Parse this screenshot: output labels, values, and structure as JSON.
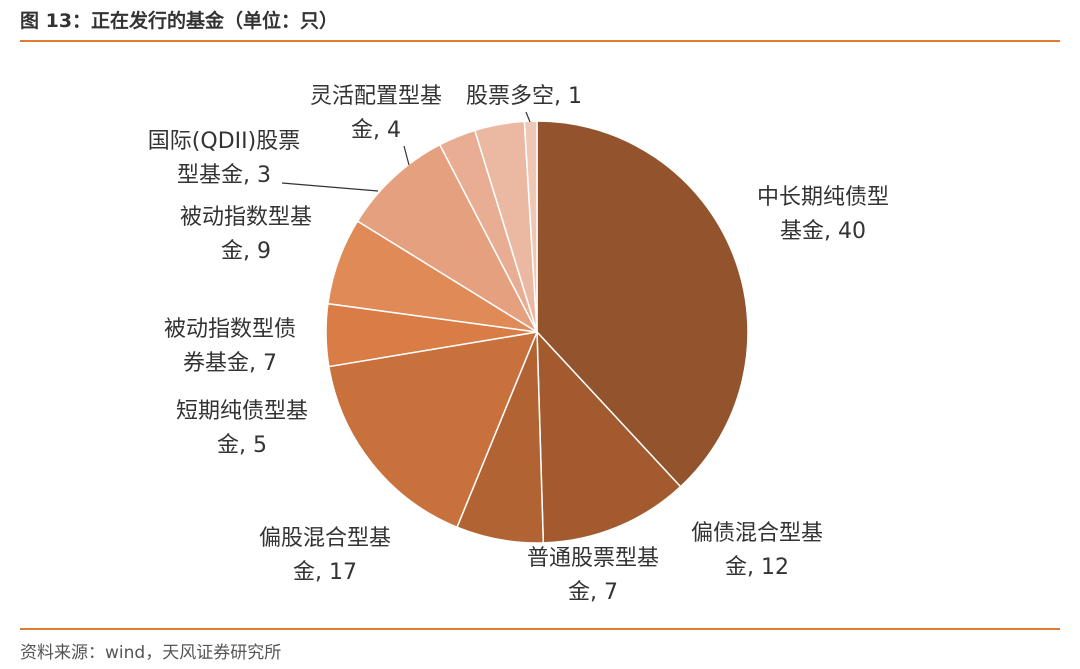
{
  "header": {
    "title": "图 13：正在发行的基金（单位：只）"
  },
  "footer": {
    "source": "资料来源：wind，天风证券研究所"
  },
  "chart_data": {
    "type": "pie",
    "title": "图 13：正在发行的基金（单位：只）",
    "unit": "只",
    "slices": [
      {
        "name": "中长期纯债型基金",
        "value": 40,
        "color": "#93532c",
        "label_lines": [
          "中长期纯债型",
          "基金, 40"
        ]
      },
      {
        "name": "偏债混合型基金",
        "value": 12,
        "color": "#a35a2e",
        "label_lines": [
          "偏债混合型基",
          "金, 12"
        ]
      },
      {
        "name": "普通股票型基金",
        "value": 7,
        "color": "#b26334",
        "label_lines": [
          "普通股票型基",
          "金, 7"
        ]
      },
      {
        "name": "偏股混合型基金",
        "value": 17,
        "color": "#c8713d",
        "label_lines": [
          "偏股混合型基",
          "金, 17"
        ]
      },
      {
        "name": "短期纯债型基金",
        "value": 5,
        "color": "#d97c45",
        "label_lines": [
          "短期纯债型基",
          "金, 5"
        ]
      },
      {
        "name": "被动指数型债券基金",
        "value": 7,
        "color": "#e08a58",
        "label_lines": [
          "被动指数型债",
          "券基金, 7"
        ]
      },
      {
        "name": "被动指数型基金",
        "value": 9,
        "color": "#e5a080",
        "label_lines": [
          "被动指数型基",
          "金, 9"
        ]
      },
      {
        "name": "国际(QDII)股票型基金",
        "value": 3,
        "color": "#e8ad92",
        "label_lines": [
          "国际(QDII)股票",
          "型基金, 3"
        ]
      },
      {
        "name": "灵活配置型基金",
        "value": 4,
        "color": "#ebb9a2",
        "label_lines": [
          "灵活配置型基",
          "金, 4"
        ]
      },
      {
        "name": "股票多空",
        "value": 1,
        "color": "#efc7b6",
        "label_lines": [
          "股票多空, 1"
        ]
      }
    ]
  }
}
